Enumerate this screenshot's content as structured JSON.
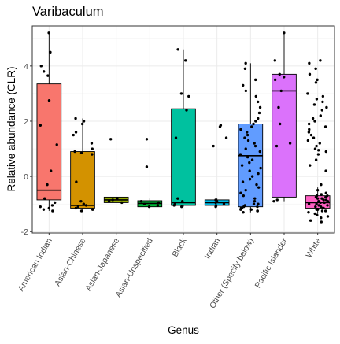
{
  "chart_data": {
    "type": "boxplot",
    "title": "Varibaculum",
    "xlabel": "Genus",
    "ylabel": "Relative abundance (CLR)",
    "ylim": [
      -2.05,
      5.45
    ],
    "yticks": [
      -2,
      0,
      2,
      4
    ],
    "grid": true,
    "legend": "none",
    "categories": [
      "American Indian",
      "Asian-Chinese",
      "Asian-Japanese",
      "Asian-Unspecified",
      "Black",
      "Indian",
      "Other (Specify below)",
      "Pacific Islander",
      "White"
    ],
    "colors": [
      "#F8766D",
      "#D39200",
      "#93AA00",
      "#00BA38",
      "#00C19F",
      "#00B9E3",
      "#619CFF",
      "#DB72FB",
      "#FF61C3"
    ],
    "boxes": [
      {
        "whisker_low": -1.25,
        "q1": -0.85,
        "median": -0.5,
        "q3": 3.35,
        "whisker_high": 5.2
      },
      {
        "whisker_low": -1.25,
        "q1": -1.15,
        "median": -1.05,
        "q3": 0.9,
        "whisker_high": 2.1
      },
      {
        "whisker_low": -0.95,
        "q1": -0.95,
        "median": -0.85,
        "q3": -0.75,
        "whisker_high": -0.75
      },
      {
        "whisker_low": -1.1,
        "q1": -1.1,
        "median": -0.98,
        "q3": -0.88,
        "whisker_high": -0.8
      },
      {
        "whisker_low": -1.1,
        "q1": -1.05,
        "median": -0.95,
        "q3": 2.45,
        "whisker_high": 4.6
      },
      {
        "whisker_low": -1.1,
        "q1": -1.05,
        "median": -0.95,
        "q3": -0.85,
        "whisker_high": -0.8
      },
      {
        "whisker_low": -1.3,
        "q1": -1.1,
        "median": 0.75,
        "q3": 1.9,
        "whisker_high": 4.1
      },
      {
        "whisker_low": -0.9,
        "q1": -0.75,
        "median": 3.1,
        "q3": 3.7,
        "whisker_high": 5.2
      },
      {
        "whisker_low": -1.35,
        "q1": -1.15,
        "median": -0.95,
        "q3": -0.7,
        "whisker_high": -0.4
      }
    ],
    "points": [
      [
        5.2,
        4.5,
        4.0,
        3.8,
        3.65,
        2.75,
        1.85,
        1.15,
        0.2,
        -0.3,
        -0.8,
        -0.95,
        -1.05,
        -1.1,
        -1.15,
        -1.2,
        -1.25
      ],
      [
        2.1,
        2.0,
        1.9,
        1.6,
        1.5,
        1.2,
        1.0,
        0.9,
        0.85,
        0.8,
        -0.2,
        -0.9,
        -1.0,
        -1.05,
        -1.1,
        -1.15,
        -1.2,
        -1.25
      ],
      [
        1.35,
        -0.8,
        -0.85,
        -0.9,
        -0.95
      ],
      [
        1.35,
        0.35,
        -0.9,
        -0.95,
        -1.0,
        -1.05,
        -1.1
      ],
      [
        4.6,
        4.2,
        3.0,
        2.9,
        2.4,
        1.4,
        -0.8,
        -0.9,
        -1.0,
        -1.05,
        -1.1
      ],
      [
        1.85,
        1.8,
        1.4,
        1.1,
        -0.85,
        -0.9,
        -0.95,
        -1.0,
        -1.05,
        -1.1
      ],
      [
        4.1,
        3.9,
        3.5,
        3.3,
        3.1,
        2.9,
        2.7,
        2.5,
        2.3,
        2.1,
        2.0,
        1.9,
        1.8,
        1.7,
        1.6,
        1.5,
        1.4,
        1.3,
        1.2,
        1.1,
        1.0,
        0.9,
        0.8,
        0.7,
        0.6,
        0.5,
        0.4,
        0.3,
        0.2,
        0.1,
        0.0,
        -0.1,
        -0.2,
        -0.3,
        -0.4,
        -0.5,
        -0.6,
        -0.7,
        -0.8,
        -0.9,
        -1.0,
        -1.0,
        -1.05,
        -1.1,
        -1.1,
        -1.15,
        -1.15,
        -1.2,
        -1.2,
        -1.25,
        -1.25,
        -1.3
      ],
      [
        5.2,
        4.2,
        3.7,
        3.6,
        3.5,
        3.1,
        2.5,
        1.9,
        1.2,
        1.1,
        -0.85,
        -0.9
      ],
      [
        4.2,
        4.1,
        3.9,
        3.7,
        3.5,
        3.4,
        3.0,
        2.9,
        2.8,
        2.7,
        2.6,
        2.5,
        2.4,
        2.2,
        2.1,
        2.0,
        1.9,
        1.8,
        1.7,
        1.6,
        1.5,
        1.4,
        1.3,
        1.2,
        1.1,
        1.0,
        0.95,
        0.9,
        0.8,
        0.6,
        0.4,
        0.2,
        -0.3,
        -0.5,
        -0.6,
        -0.65,
        -0.7,
        -0.7,
        -0.75,
        -0.75,
        -0.8,
        -0.8,
        -0.85,
        -0.85,
        -0.9,
        -0.9,
        -0.95,
        -0.95,
        -1.0,
        -1.0,
        -1.05,
        -1.05,
        -1.1,
        -1.1,
        -1.15,
        -1.15,
        -1.2,
        -1.2,
        -1.25,
        -1.25,
        -1.3,
        -1.35,
        -1.4,
        -1.45,
        -1.5,
        -1.6,
        -1.65
      ]
    ]
  }
}
